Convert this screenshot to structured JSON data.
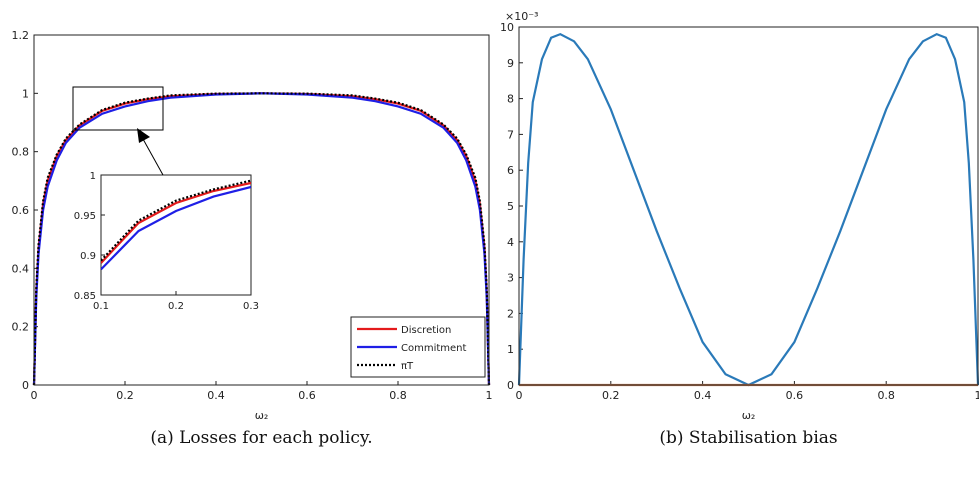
{
  "chart_data": [
    {
      "type": "line",
      "x_label": "ω₂",
      "caption": "(a) Losses for each policy.",
      "x": [
        0,
        0.005,
        0.01,
        0.02,
        0.03,
        0.05,
        0.07,
        0.1,
        0.15,
        0.2,
        0.25,
        0.3,
        0.4,
        0.5,
        0.6,
        0.7,
        0.75,
        0.8,
        0.85,
        0.9,
        0.93,
        0.95,
        0.97,
        0.98,
        0.99,
        0.995,
        1
      ],
      "series": [
        {
          "name": "Discretion",
          "color": "#e41a1c",
          "linestyle": "solid",
          "values": [
            0,
            0.32,
            0.47,
            0.62,
            0.7,
            0.785,
            0.84,
            0.89,
            0.94,
            0.965,
            0.98,
            0.99,
            0.998,
            1,
            0.998,
            0.99,
            0.98,
            0.965,
            0.94,
            0.89,
            0.84,
            0.785,
            0.7,
            0.62,
            0.47,
            0.32,
            0
          ]
        },
        {
          "name": "Commitment",
          "color": "#1f1fe6",
          "linestyle": "solid",
          "values": [
            0,
            0.3,
            0.45,
            0.6,
            0.68,
            0.77,
            0.83,
            0.882,
            0.93,
            0.955,
            0.973,
            0.985,
            0.996,
            1,
            0.996,
            0.985,
            0.973,
            0.955,
            0.93,
            0.882,
            0.83,
            0.77,
            0.68,
            0.6,
            0.45,
            0.3,
            0
          ]
        },
        {
          "name": "πT",
          "color": "#000000",
          "linestyle": "dotted",
          "values": [
            0,
            0.33,
            0.48,
            0.63,
            0.71,
            0.79,
            0.845,
            0.893,
            0.943,
            0.968,
            0.982,
            0.993,
            0.999,
            1,
            0.999,
            0.993,
            0.982,
            0.968,
            0.943,
            0.893,
            0.845,
            0.79,
            0.71,
            0.63,
            0.48,
            0.33,
            0
          ]
        }
      ],
      "xlim": [
        0,
        1
      ],
      "xticks": [
        0,
        0.2,
        0.4,
        0.6,
        0.8,
        1
      ],
      "ylim": [
        0,
        1.2
      ],
      "yticks": [
        0,
        0.2,
        0.4,
        0.6,
        0.8,
        1,
        1.2
      ],
      "legend": "lower right",
      "inset": {
        "xlim": [
          0.1,
          0.3
        ],
        "xticks": [
          0.1,
          0.2,
          0.3
        ],
        "ylim": [
          0.85,
          1
        ],
        "yticks": [
          0.85,
          0.9,
          0.95,
          1
        ]
      }
    },
    {
      "type": "line",
      "x_label": "ω₂",
      "caption": "(b) Stabilisation bias",
      "y_multiplier": "×10⁻³",
      "x": [
        0,
        0.01,
        0.02,
        0.03,
        0.05,
        0.07,
        0.09,
        0.12,
        0.15,
        0.2,
        0.25,
        0.3,
        0.35,
        0.4,
        0.45,
        0.5,
        0.55,
        0.6,
        0.65,
        0.7,
        0.75,
        0.8,
        0.85,
        0.88,
        0.91,
        0.93,
        0.95,
        0.97,
        0.98,
        0.99,
        1
      ],
      "series": [
        {
          "color": "#2a7ab9",
          "linestyle": "solid",
          "values": [
            0,
            0.0035,
            0.0062,
            0.0079,
            0.0091,
            0.0097,
            0.0098,
            0.0096,
            0.0091,
            0.0077,
            0.006,
            0.0043,
            0.0027,
            0.0012,
            0.0003,
            0,
            0.0003,
            0.0012,
            0.0027,
            0.0043,
            0.006,
            0.0077,
            0.0091,
            0.0096,
            0.0098,
            0.0097,
            0.0091,
            0.0079,
            0.0062,
            0.0035,
            0
          ]
        },
        {
          "color": "#c1784f",
          "linestyle": "solid",
          "values": [
            0,
            0,
            0,
            0,
            0,
            0,
            0,
            0,
            0,
            0,
            0,
            0,
            0,
            0,
            0,
            0,
            0,
            0,
            0,
            0,
            0,
            0,
            0,
            0,
            0,
            0,
            0,
            0,
            0,
            0,
            0
          ]
        }
      ],
      "xlim": [
        0,
        1
      ],
      "xticks": [
        0,
        0.2,
        0.4,
        0.6,
        0.8,
        1
      ],
      "ylim": [
        0,
        0.01
      ],
      "yticks": [
        {
          "value": 0,
          "label": "0"
        },
        {
          "value": 0.001,
          "label": "1"
        },
        {
          "value": 0.002,
          "label": "2"
        },
        {
          "value": 0.003,
          "label": "3"
        },
        {
          "value": 0.004,
          "label": "4"
        },
        {
          "value": 0.005,
          "label": "5"
        },
        {
          "value": 0.006,
          "label": "6"
        },
        {
          "value": 0.007,
          "label": "7"
        },
        {
          "value": 0.008,
          "label": "8"
        },
        {
          "value": 0.009,
          "label": "9"
        },
        {
          "value": 0.01,
          "label": "10"
        }
      ]
    }
  ]
}
